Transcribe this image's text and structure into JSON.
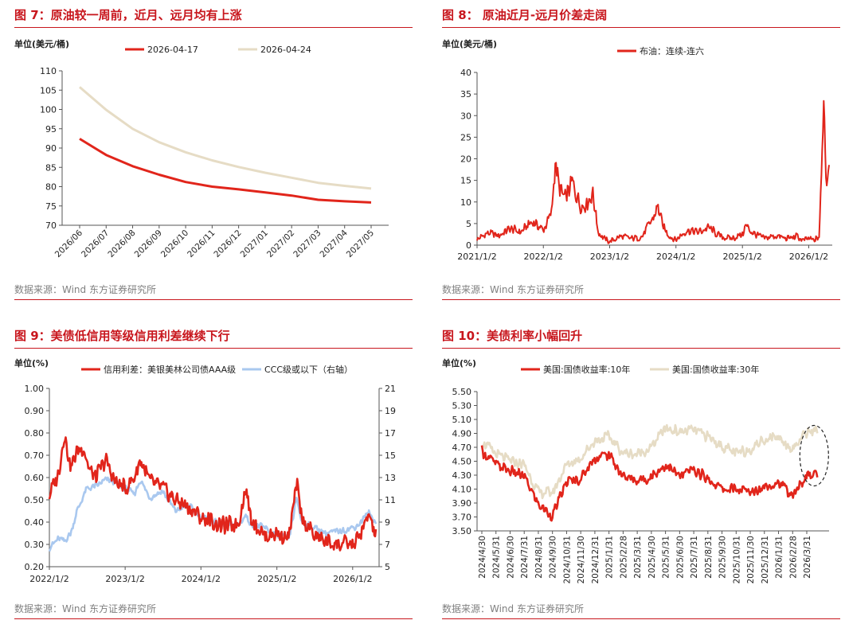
{
  "panels": [
    {
      "title": "图 7：原油较一周前，近月、远月均有上涨",
      "source": "数据来源：Wind 东方证券研究所"
    },
    {
      "title": "图 8： 原油近月-远月价差走阔",
      "source": "数据来源：Wind 东方证券研究所"
    },
    {
      "title": "图 9：美债低信用等级信用利差继续下行",
      "source": "数据来源：Wind 东方证券研究所"
    },
    {
      "title": "图 10：美债利率小幅回升",
      "source": "数据来源：Wind 东方证券研究所"
    }
  ],
  "chart_data": [
    {
      "type": "line",
      "ylabel": "单位(美元/桶)",
      "ylim": [
        70,
        110
      ],
      "yticks": [
        70,
        75,
        80,
        85,
        90,
        95,
        100,
        105,
        110
      ],
      "categories": [
        "2026/06",
        "2026/07",
        "2026/08",
        "2026/09",
        "2026/10",
        "2026/11",
        "2026/12",
        "2027/01",
        "2027/02",
        "2027/03",
        "2027/04",
        "2027/05"
      ],
      "grid": false,
      "legend": "top-center",
      "series": [
        {
          "name": "2026-04-17",
          "color": "#e1251b",
          "values": [
            92.4,
            88.2,
            85.3,
            83.1,
            81.2,
            80.0,
            79.3,
            78.5,
            77.7,
            76.6,
            76.2,
            75.9
          ]
        },
        {
          "name": "2026-04-24",
          "color": "#e6dcc5",
          "values": [
            105.8,
            99.9,
            95.0,
            91.5,
            88.9,
            86.8,
            85.1,
            83.6,
            82.3,
            81.0,
            80.2,
            79.5
          ]
        }
      ]
    },
    {
      "type": "line",
      "ylabel": "单位(美元/桶)",
      "ylim": [
        0,
        40
      ],
      "yticks": [
        0,
        5,
        10,
        15,
        20,
        25,
        30,
        35,
        40
      ],
      "xticks": [
        "2021/1/2",
        "2022/1/2",
        "2023/1/2",
        "2024/1/2",
        "2025/1/2",
        "2026/1/2"
      ],
      "grid": false,
      "legend": "top-center",
      "series": [
        {
          "name": "布油：连续-连六",
          "color": "#e1251b",
          "x": [
            "2021/1/2",
            "2021/3/1",
            "2021/5/1",
            "2021/7/1",
            "2021/9/1",
            "2021/11/1",
            "2022/1/2",
            "2022/2/15",
            "2022/3/8",
            "2022/4/1",
            "2022/5/1",
            "2022/6/10",
            "2022/7/1",
            "2022/8/1",
            "2022/9/1",
            "2022/10/1",
            "2022/11/1",
            "2022/12/1",
            "2023/1/2",
            "2023/3/1",
            "2023/5/1",
            "2023/7/1",
            "2023/9/1",
            "2023/9/25",
            "2023/10/20",
            "2023/12/1",
            "2024/1/2",
            "2024/3/1",
            "2024/5/1",
            "2024/7/1",
            "2024/9/1",
            "2024/11/1",
            "2025/1/2",
            "2025/1/20",
            "2025/3/1",
            "2025/5/1",
            "2025/7/1",
            "2025/9/1",
            "2025/11/1",
            "2025/12/1",
            "2026/1/2",
            "2026/2/1",
            "2026/3/1",
            "2026/3/15",
            "2026/3/25",
            "2026/4/1",
            "2026/4/10",
            "2026/4/24"
          ],
          "values": [
            1.3,
            2.8,
            2.2,
            3.8,
            3.0,
            5.5,
            3.5,
            7.2,
            19.0,
            13.0,
            10.5,
            14.5,
            12.0,
            9.0,
            10.0,
            12.0,
            3.0,
            1.5,
            0.8,
            2.0,
            1.5,
            2.0,
            6.5,
            9.0,
            4.5,
            2.0,
            1.2,
            3.5,
            3.0,
            4.0,
            2.0,
            1.5,
            2.5,
            4.5,
            2.8,
            1.5,
            2.2,
            1.5,
            2.0,
            1.0,
            1.5,
            1.0,
            2.0,
            18.0,
            37.0,
            25.0,
            14.0,
            20.5
          ]
        }
      ]
    },
    {
      "type": "line",
      "ylabel": "单位(%)",
      "ylim": [
        0.2,
        1.0
      ],
      "yticks": [
        0.2,
        0.3,
        0.4,
        0.5,
        0.6,
        0.7,
        0.8,
        0.9,
        1.0
      ],
      "yticks_labels": [
        "0.20",
        "0.30",
        "0.40",
        "0.50",
        "0.60",
        "0.70",
        "0.80",
        "0.90",
        "1.00"
      ],
      "y2lim": [
        5,
        21
      ],
      "y2ticks": [
        5,
        7,
        9,
        11,
        13,
        15,
        17,
        19,
        21
      ],
      "xticks": [
        "2022/1/2",
        "2023/1/2",
        "2024/1/2",
        "2025/1/2",
        "2026/1/2"
      ],
      "grid": false,
      "legend": "top-center",
      "series": [
        {
          "name": "信用利差：美银美林公司债AAA级",
          "color": "#e1251b",
          "axis": "left",
          "x": [
            "2022/1/2",
            "2022/2/15",
            "2022/3/15",
            "2022/4/15",
            "2022/5/15",
            "2022/6/15",
            "2022/7/15",
            "2022/8/15",
            "2022/10/1",
            "2022/11/15",
            "2023/1/2",
            "2023/2/15",
            "2023/3/15",
            "2023/5/1",
            "2023/7/1",
            "2023/9/1",
            "2023/11/1",
            "2024/1/2",
            "2024/3/1",
            "2024/5/1",
            "2024/7/1",
            "2024/8/5",
            "2024/9/1",
            "2024/11/1",
            "2025/1/2",
            "2025/3/1",
            "2025/4/8",
            "2025/5/1",
            "2025/7/1",
            "2025/9/1",
            "2025/11/1",
            "2026/1/2",
            "2026/2/1",
            "2026/3/1",
            "2026/3/20",
            "2026/4/24"
          ],
          "values": [
            0.52,
            0.62,
            0.8,
            0.64,
            0.72,
            0.74,
            0.63,
            0.6,
            0.68,
            0.58,
            0.55,
            0.6,
            0.68,
            0.58,
            0.55,
            0.5,
            0.47,
            0.42,
            0.4,
            0.38,
            0.4,
            0.55,
            0.42,
            0.34,
            0.35,
            0.33,
            0.57,
            0.42,
            0.34,
            0.31,
            0.3,
            0.3,
            0.33,
            0.38,
            0.44,
            0.33
          ]
        },
        {
          "name": "CCC级或以下（右轴）",
          "color": "#a9c8ef",
          "axis": "right",
          "x": [
            "2022/1/2",
            "2022/2/15",
            "2022/3/15",
            "2022/4/15",
            "2022/5/15",
            "2022/7/1",
            "2022/8/15",
            "2022/10/1",
            "2022/11/15",
            "2023/1/2",
            "2023/2/15",
            "2023/3/15",
            "2023/5/1",
            "2023/7/1",
            "2023/9/1",
            "2023/11/1",
            "2024/1/2",
            "2024/3/1",
            "2024/5/1",
            "2024/7/1",
            "2024/8/5",
            "2024/9/1",
            "2024/11/1",
            "2025/1/2",
            "2025/3/1",
            "2025/4/8",
            "2025/5/1",
            "2025/7/1",
            "2025/9/1",
            "2025/11/1",
            "2026/1/2",
            "2026/2/1",
            "2026/3/1",
            "2026/3/20",
            "2026/4/24"
          ],
          "values": [
            6.7,
            7.5,
            7.3,
            8.0,
            10.0,
            12.0,
            12.2,
            12.8,
            12.6,
            12.0,
            11.5,
            12.8,
            11.2,
            11.8,
            10.0,
            10.5,
            9.5,
            9.0,
            8.8,
            8.8,
            9.6,
            8.8,
            8.5,
            7.8,
            7.5,
            11.2,
            9.0,
            8.5,
            8.0,
            8.2,
            8.5,
            8.8,
            9.5,
            9.8,
            9.0
          ]
        }
      ]
    },
    {
      "type": "line",
      "ylabel": "单位(%)",
      "ylim": [
        3.5,
        5.5
      ],
      "yticks": [
        3.5,
        3.7,
        3.9,
        4.1,
        4.3,
        4.5,
        4.7,
        4.9,
        5.1,
        5.3,
        5.5
      ],
      "yticks_labels": [
        "3.50",
        "3.70",
        "3.90",
        "4.10",
        "4.30",
        "4.50",
        "4.70",
        "4.90",
        "5.10",
        "5.30",
        "5.50"
      ],
      "categories": [
        "2024/4/30",
        "2024/5/31",
        "2024/6/30",
        "2024/7/31",
        "2024/8/31",
        "2024/9/30",
        "2024/10/31",
        "2024/11/30",
        "2024/12/31",
        "2025/1/31",
        "2025/2/28",
        "2025/3/31",
        "2025/4/30",
        "2025/5/31",
        "2025/6/30",
        "2025/7/31",
        "2025/8/31",
        "2025/9/30",
        "2025/10/31",
        "2025/11/30",
        "2025/12/31",
        "2026/1/31",
        "2026/2/28",
        "2026/3/31"
      ],
      "grid": false,
      "legend": "top-center",
      "annotation": "dashed ellipse around latest values",
      "series": [
        {
          "name": "美国:国债收益率:10年",
          "color": "#e1251b",
          "values": [
            4.65,
            4.45,
            4.36,
            4.28,
            3.88,
            3.72,
            4.2,
            4.25,
            4.55,
            4.6,
            4.28,
            4.22,
            4.28,
            4.45,
            4.28,
            4.38,
            4.25,
            4.1,
            4.1,
            4.05,
            4.15,
            4.2,
            4.0,
            4.3
          ]
        },
        {
          "name": "美国:国债收益率:30年",
          "color": "#e6dcc5",
          "values": [
            4.78,
            4.6,
            4.5,
            4.45,
            4.05,
            4.05,
            4.45,
            4.55,
            4.8,
            4.85,
            4.62,
            4.6,
            4.7,
            4.98,
            4.92,
            4.95,
            4.85,
            4.72,
            4.6,
            4.68,
            4.82,
            4.85,
            4.68,
            4.92
          ]
        }
      ]
    }
  ]
}
